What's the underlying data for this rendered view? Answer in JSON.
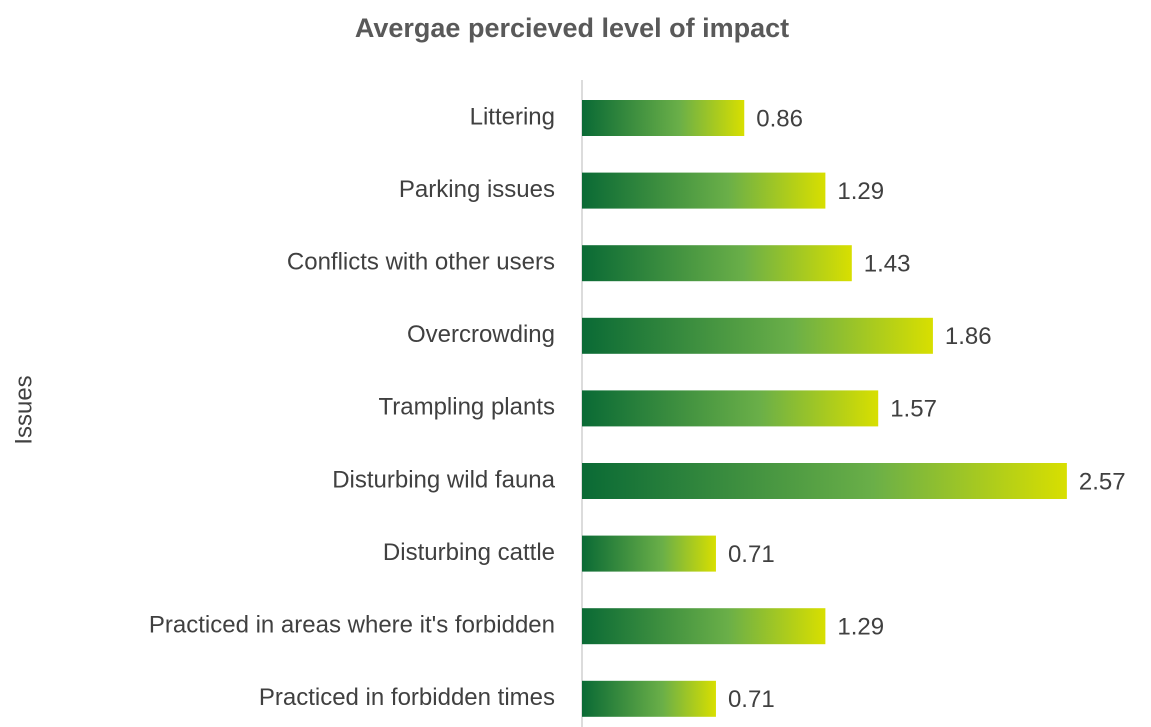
{
  "chart_data": {
    "type": "hbar",
    "title": "Avergae percieved level of impact",
    "y_label": "Issues",
    "categories": [
      "Littering",
      "Parking issues",
      "Conflicts with other users",
      "Overcrowding",
      "Trampling plants",
      "Disturbing wild fauna",
      "Disturbing cattle",
      "Practiced in areas where it's forbidden",
      "Practiced in forbidden times"
    ],
    "values": [
      0.86,
      1.29,
      1.43,
      1.86,
      1.57,
      2.57,
      0.71,
      1.29,
      0.71
    ],
    "xlim": [
      0,
      3
    ],
    "gradient": [
      "#0a6a35",
      "#6aaf48",
      "#d8df00"
    ]
  }
}
